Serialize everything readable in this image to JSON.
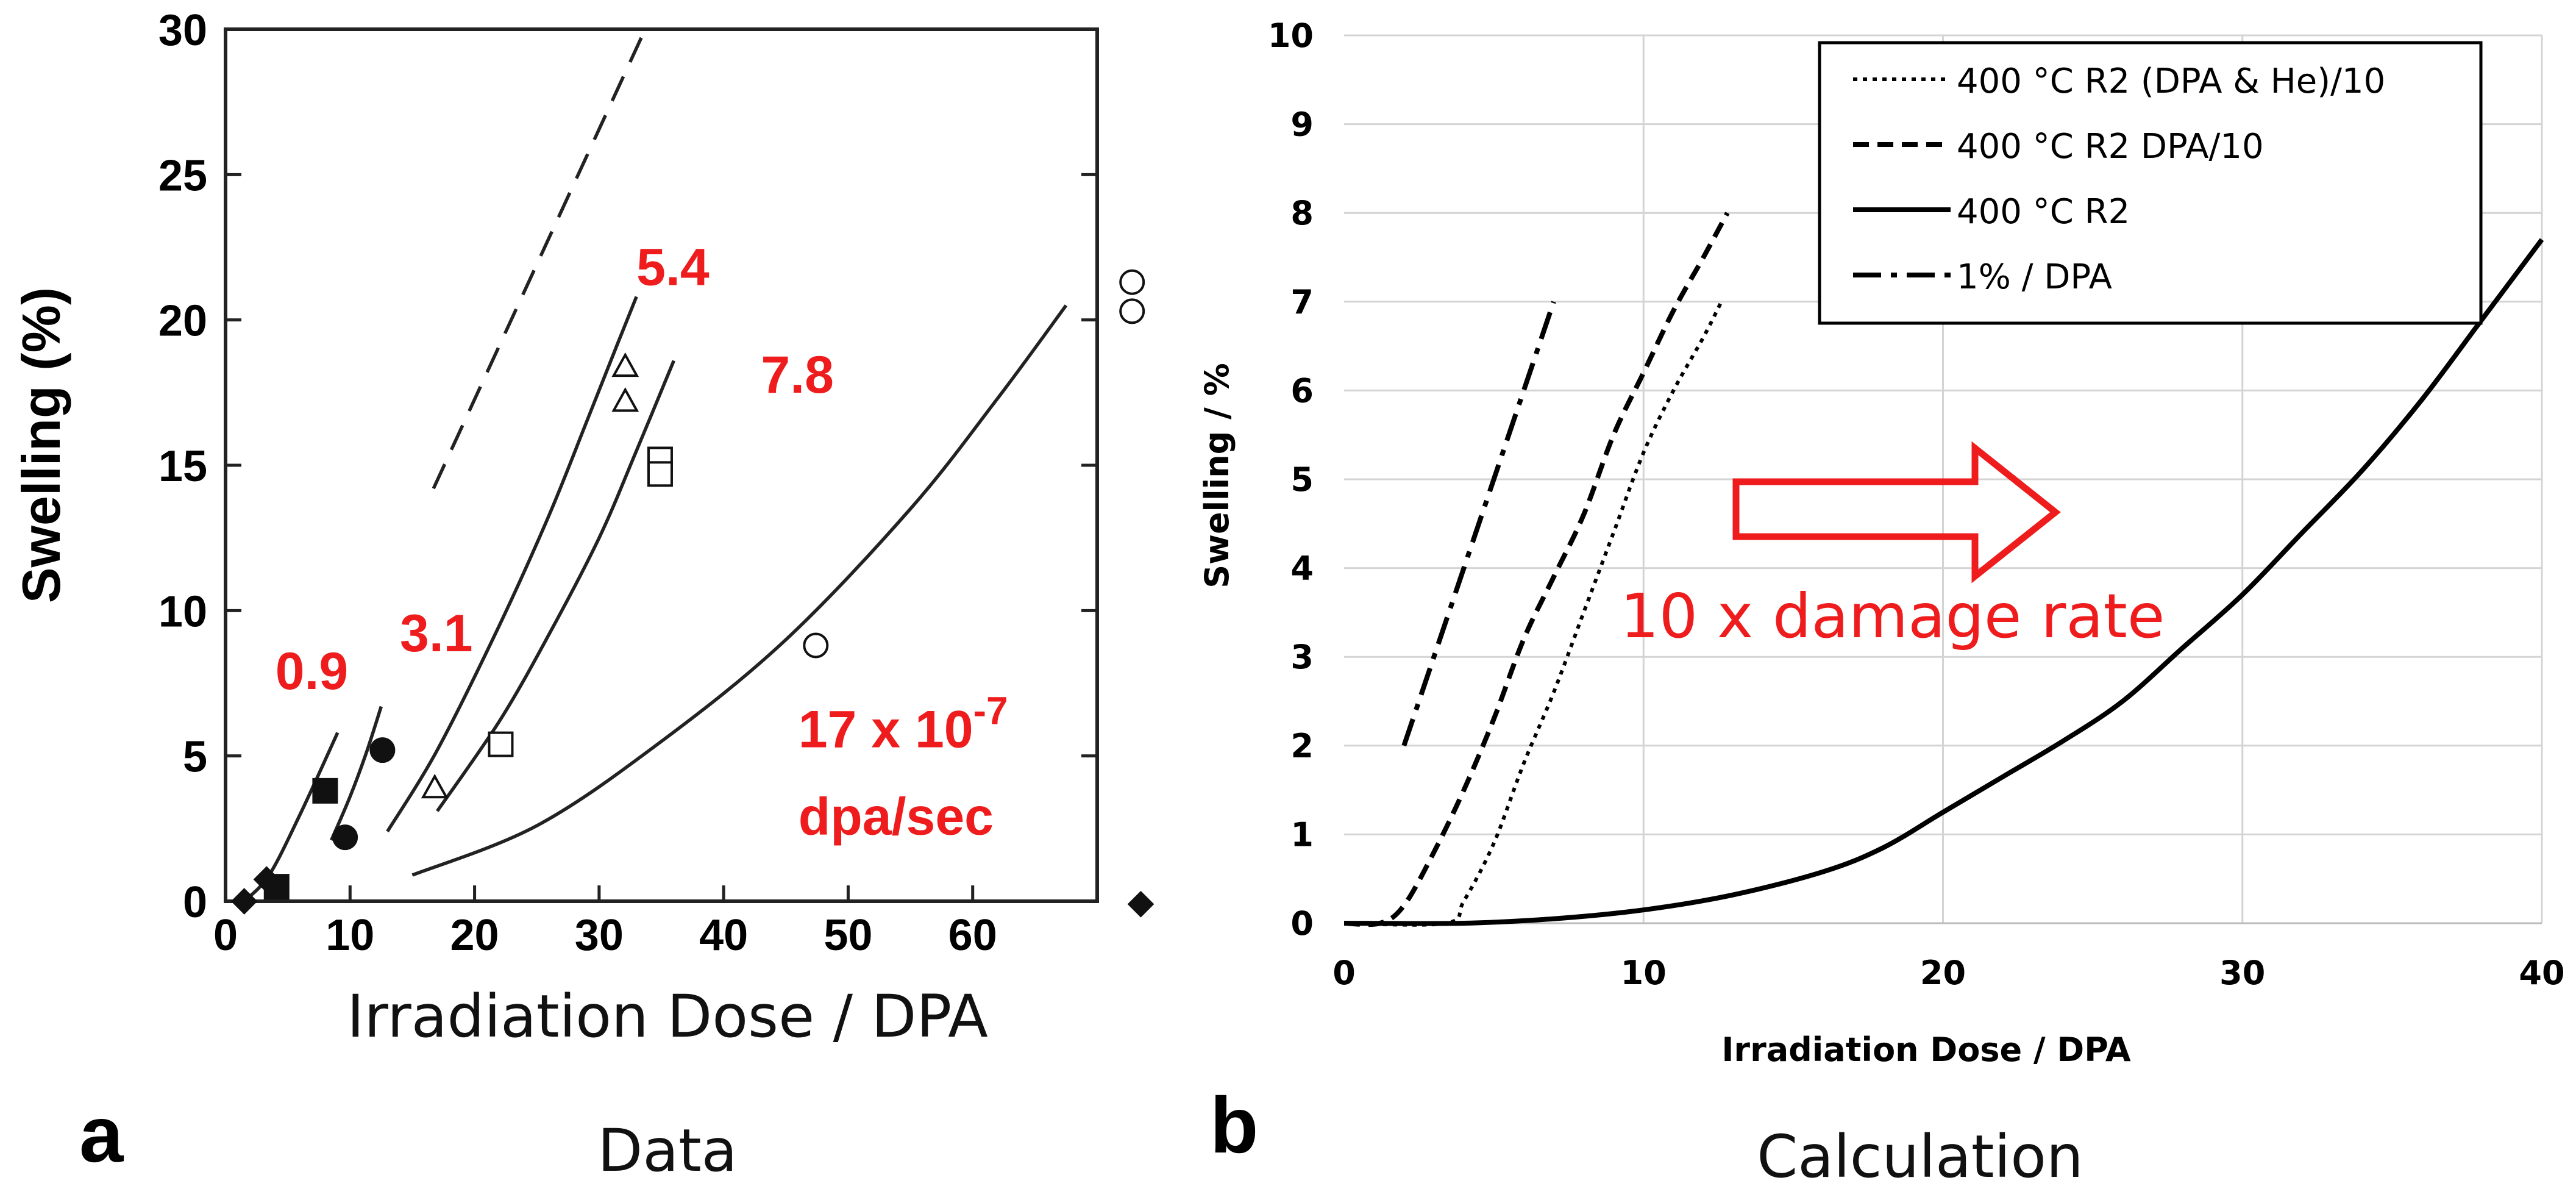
{
  "chart_data": [
    {
      "type": "line",
      "panel_letter": "a",
      "caption": "Data",
      "ylabel": "Swelling (%)",
      "xlabel": "Irradiation Dose / DPA",
      "xlim": [
        0,
        70
      ],
      "ylim": [
        0,
        30
      ],
      "x_ticks": [
        0,
        10,
        20,
        30,
        40,
        50,
        60
      ],
      "y_ticks": [
        0,
        5,
        10,
        15,
        20,
        25,
        30
      ],
      "rate_annotations": [
        {
          "text": "0.9",
          "x": 4,
          "y": 7.3
        },
        {
          "text": "3.1",
          "x": 14,
          "y": 8.6
        },
        {
          "text": "5.4",
          "x": 33,
          "y": 21.2
        },
        {
          "text": "7.8",
          "x": 43,
          "y": 17.5
        },
        {
          "text": "17 x 10",
          "superscript": "-7",
          "x": 46,
          "y": 5.3
        },
        {
          "text": "dpa/sec",
          "x": 46,
          "y": 2.3
        }
      ],
      "series": [
        {
          "name": "dashed trend",
          "style": "dashed",
          "points": [
            [
              16.7,
              14.2
            ],
            [
              33.7,
              30
            ]
          ]
        },
        {
          "name": "0.9",
          "style": "solid",
          "points": [
            [
              1.5,
              0
            ],
            [
              3.5,
              0.9
            ],
            [
              6,
              3.0
            ],
            [
              9,
              5.8
            ]
          ]
        },
        {
          "name": "3.1",
          "style": "solid",
          "points": [
            [
              8.5,
              2.1
            ],
            [
              10,
              3.6
            ],
            [
              11.3,
              5.1
            ],
            [
              12.5,
              6.7
            ]
          ]
        },
        {
          "name": "5.4",
          "style": "solid",
          "points": [
            [
              13,
              2.4
            ],
            [
              17,
              5.2
            ],
            [
              22,
              9.5
            ],
            [
              26,
              13.3
            ],
            [
              29,
              16.5
            ],
            [
              31.5,
              19.2
            ],
            [
              33,
              20.8
            ]
          ]
        },
        {
          "name": "7.8",
          "style": "solid",
          "points": [
            [
              17,
              3.1
            ],
            [
              22,
              6.2
            ],
            [
              26,
              9.2
            ],
            [
              30,
              12.5
            ],
            [
              33,
              15.5
            ],
            [
              36,
              18.6
            ]
          ]
        },
        {
          "name": "17",
          "style": "solid",
          "points": [
            [
              15,
              0.9
            ],
            [
              25,
              2.6
            ],
            [
              35,
              5.5
            ],
            [
              45,
              9.0
            ],
            [
              55,
              13.5
            ],
            [
              62,
              17.3
            ],
            [
              67.5,
              20.5
            ]
          ]
        }
      ],
      "markers": [
        {
          "shape": "diamond-filled",
          "x": 1.5,
          "y": 0
        },
        {
          "shape": "diamond-filled",
          "x": 3.3,
          "y": 0.75
        },
        {
          "shape": "square-filled",
          "x": 4.1,
          "y": 0.5
        },
        {
          "shape": "square-filled",
          "x": 8,
          "y": 3.8
        },
        {
          "shape": "circle-filled",
          "x": 9.6,
          "y": 2.2
        },
        {
          "shape": "circle-filled",
          "x": 12.6,
          "y": 5.2
        },
        {
          "shape": "triangle-open",
          "x": 16.8,
          "y": 3.9
        },
        {
          "shape": "square-open",
          "x": 22.1,
          "y": 5.4
        },
        {
          "shape": "triangle-open",
          "x": 32.1,
          "y": 18.4
        },
        {
          "shape": "triangle-open",
          "x": 32.1,
          "y": 17.2
        },
        {
          "shape": "square-open",
          "x": 34.9,
          "y": 15.2
        },
        {
          "shape": "square-open",
          "x": 34.9,
          "y": 14.7
        },
        {
          "shape": "circle-open",
          "x": 47.4,
          "y": 8.8
        },
        {
          "shape": "circle-open",
          "x": 72.8,
          "y": 21.3
        },
        {
          "shape": "circle-open",
          "x": 72.8,
          "y": 20.3
        },
        {
          "shape": "diamond-filled",
          "x": 73.5,
          "y": -0.1
        }
      ]
    },
    {
      "type": "line",
      "panel_letter": "b",
      "caption": "Calculation",
      "ylabel": "Swelling / %",
      "xlabel": "Irradiation Dose / DPA",
      "xlim": [
        0,
        40
      ],
      "ylim": [
        0,
        10
      ],
      "x_ticks": [
        0,
        10,
        20,
        30,
        40
      ],
      "y_ticks": [
        0,
        1,
        2,
        3,
        4,
        5,
        6,
        7,
        8,
        9,
        10
      ],
      "grid": true,
      "legend_position": "top-right",
      "annotation": "10 x damage rate",
      "series": [
        {
          "name": "400 °C R2 (DPA & He)/10",
          "style": "dotted",
          "points": [
            [
              0,
              0
            ],
            [
              3.4,
              0
            ],
            [
              4,
              0.25
            ],
            [
              5,
              0.9
            ],
            [
              6,
              1.8
            ],
            [
              7,
              2.6
            ],
            [
              8,
              3.5
            ],
            [
              9,
              4.4
            ],
            [
              10,
              5.3
            ],
            [
              11,
              6.0
            ],
            [
              12,
              6.6
            ],
            [
              12.6,
              7.0
            ]
          ]
        },
        {
          "name": "400 °C R2 DPA/10",
          "style": "dashed",
          "points": [
            [
              0,
              0
            ],
            [
              1.2,
              0
            ],
            [
              2,
              0.2
            ],
            [
              3,
              0.8
            ],
            [
              4,
              1.5
            ],
            [
              5,
              2.3
            ],
            [
              6,
              3.2
            ],
            [
              7,
              3.9
            ],
            [
              8,
              4.6
            ],
            [
              9,
              5.5
            ],
            [
              10,
              6.2
            ],
            [
              11,
              6.9
            ],
            [
              12,
              7.5
            ],
            [
              12.8,
              8.0
            ]
          ]
        },
        {
          "name": "400 °C R2",
          "style": "solid",
          "points": [
            [
              0,
              0
            ],
            [
              4,
              0
            ],
            [
              7,
              0.05
            ],
            [
              10,
              0.15
            ],
            [
              13,
              0.32
            ],
            [
              16,
              0.58
            ],
            [
              18,
              0.85
            ],
            [
              20,
              1.25
            ],
            [
              22,
              1.65
            ],
            [
              24,
              2.05
            ],
            [
              26,
              2.5
            ],
            [
              28,
              3.1
            ],
            [
              30,
              3.7
            ],
            [
              32,
              4.4
            ],
            [
              34,
              5.1
            ],
            [
              36,
              5.9
            ],
            [
              38,
              6.8
            ],
            [
              40,
              7.7
            ]
          ]
        },
        {
          "name": "1% / DPA",
          "style": "dashdot",
          "points": [
            [
              2,
              2
            ],
            [
              7,
              7
            ]
          ]
        }
      ]
    }
  ]
}
